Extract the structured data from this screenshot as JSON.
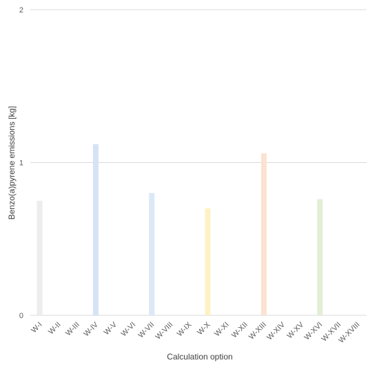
{
  "chart_data": {
    "type": "bar",
    "xlabel": "Calculation option",
    "ylabel": "Benzo(a)pyrene emissions [kg]",
    "ylim": [
      0,
      2
    ],
    "yticks": [
      "0",
      "1",
      "2"
    ],
    "grid": true,
    "categories": [
      "W-I",
      "W-II",
      "W-III",
      "W-IV",
      "W-V",
      "W-VI",
      "W-VII",
      "W-VIII",
      "W-IX",
      "W-X",
      "W-XI",
      "W-XII",
      "W-XIII",
      "W-XIV",
      "W-XV",
      "W-XVI",
      "W-XVII",
      "W-XVIII"
    ],
    "values": [
      0.75,
      0,
      0,
      1.12,
      0,
      0,
      0.8,
      0,
      0,
      0.7,
      0,
      0,
      1.06,
      0,
      0,
      0.76,
      0,
      0
    ],
    "colors": [
      "#ededed",
      "#ededed",
      "#ededed",
      "#d6e2f5",
      "#d6e2f5",
      "#d6e2f5",
      "#dbe8f7",
      "#dbe8f7",
      "#dbe8f7",
      "#fdf2c4",
      "#fdf2c4",
      "#fdf2c4",
      "#fbe2d2",
      "#fbe2d2",
      "#fbe2d2",
      "#e2efd6",
      "#e2efd6",
      "#e2efd6"
    ]
  }
}
